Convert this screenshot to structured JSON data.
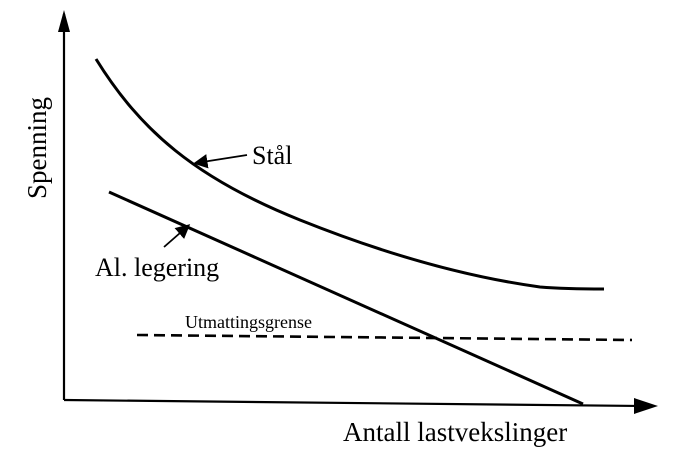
{
  "chart_data": {
    "type": "line",
    "title": "",
    "xlabel": "Antall lastvekslinger",
    "ylabel": "Spenning",
    "grid": false,
    "legend": "none",
    "series": [
      {
        "name": "Stål"
      },
      {
        "name": "Al. legering"
      },
      {
        "name": "Utmattingsgrense",
        "style": "dashed"
      }
    ],
    "color": "#000000"
  }
}
